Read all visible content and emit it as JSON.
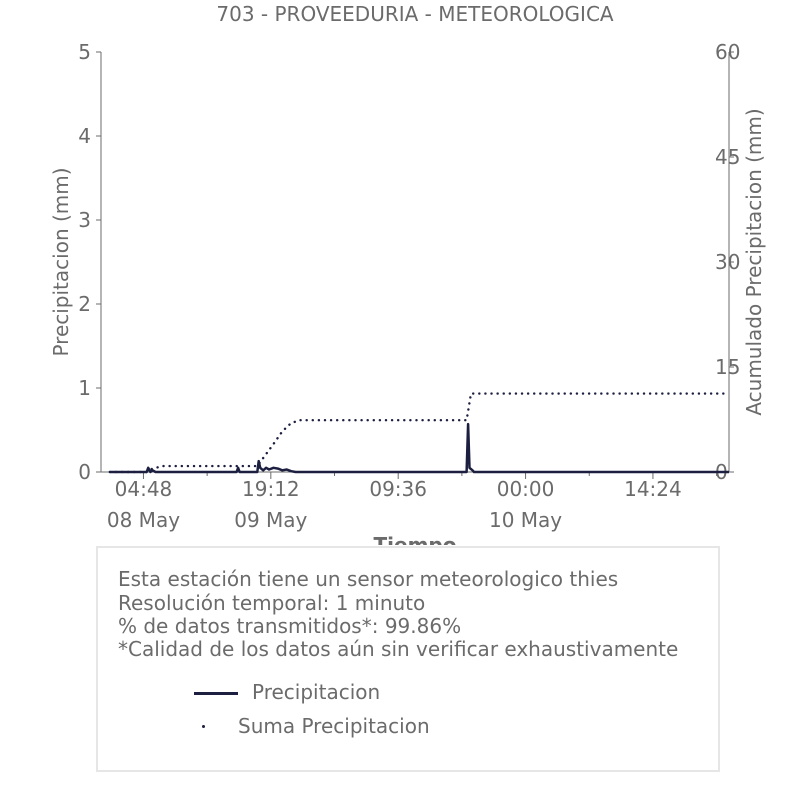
{
  "chart_data": {
    "type": "line",
    "title": "703 - PROVEEDURIA - METEOROLOGICA",
    "xlabel": "Tiempo",
    "ylabel": "Precipitacion (mm)",
    "y2label": "Acumulado Precipitacion (mm)",
    "ylim": [
      0,
      5
    ],
    "y2lim": [
      0,
      60
    ],
    "yticks": [
      "0",
      "1",
      "2",
      "3",
      "4",
      "5"
    ],
    "y2ticks": [
      "0",
      "15",
      "30",
      "45",
      "60"
    ],
    "xlim": [
      "2025-05-08 00:00",
      "2025-05-10 23:00"
    ],
    "xticks": [
      {
        "at": "2025-05-08 04:48",
        "label": "04:48",
        "date": "08 May"
      },
      {
        "at": "2025-05-08 19:12",
        "label": "19:12",
        "date": "09 May"
      },
      {
        "at": "2025-05-09 09:36",
        "label": "09:36",
        "date": ""
      },
      {
        "at": "2025-05-10 00:00",
        "label": "00:00",
        "date": "10 May"
      },
      {
        "at": "2025-05-10 14:24",
        "label": "14:24",
        "date": ""
      }
    ],
    "grid": false,
    "legend_position": "bottom",
    "series": [
      {
        "name": "Precipitacion",
        "axis": "left",
        "style": "line",
        "color": "#1c1f40",
        "points": [
          [
            "2025-05-08 01:00",
            0
          ],
          [
            "2025-05-08 05:10",
            0
          ],
          [
            "2025-05-08 05:20",
            0.05
          ],
          [
            "2025-05-08 05:35",
            0
          ],
          [
            "2025-05-08 05:50",
            0.02
          ],
          [
            "2025-05-08 06:10",
            0
          ],
          [
            "2025-05-08 15:20",
            0
          ],
          [
            "2025-05-08 15:30",
            0.05
          ],
          [
            "2025-05-08 15:40",
            0
          ],
          [
            "2025-05-08 17:40",
            0
          ],
          [
            "2025-05-08 17:50",
            0.13
          ],
          [
            "2025-05-08 18:00",
            0.05
          ],
          [
            "2025-05-08 18:20",
            0.02
          ],
          [
            "2025-05-08 18:40",
            0.05
          ],
          [
            "2025-05-08 19:00",
            0.03
          ],
          [
            "2025-05-08 19:30",
            0.05
          ],
          [
            "2025-05-08 20:00",
            0.04
          ],
          [
            "2025-05-08 20:30",
            0.02
          ],
          [
            "2025-05-08 21:00",
            0.03
          ],
          [
            "2025-05-08 21:30",
            0.01
          ],
          [
            "2025-05-08 22:00",
            0
          ],
          [
            "2025-05-09 17:20",
            0
          ],
          [
            "2025-05-09 17:30",
            0.57
          ],
          [
            "2025-05-09 17:40",
            0.05
          ],
          [
            "2025-05-09 18:00",
            0.02
          ],
          [
            "2025-05-09 18:10",
            0
          ],
          [
            "2025-05-10 23:00",
            0
          ]
        ]
      },
      {
        "name": "Suma Precipitacion",
        "axis": "right",
        "style": "dotted",
        "color": "#1c1f40",
        "points": [
          [
            "2025-05-08 01:00",
            0
          ],
          [
            "2025-05-08 05:10",
            0
          ],
          [
            "2025-05-08 05:40",
            0.4
          ],
          [
            "2025-05-08 06:30",
            0.7
          ],
          [
            "2025-05-08 07:00",
            0.85
          ],
          [
            "2025-05-08 17:40",
            0.85
          ],
          [
            "2025-05-08 18:20",
            2.0
          ],
          [
            "2025-05-08 19:30",
            4.0
          ],
          [
            "2025-05-08 20:30",
            5.8
          ],
          [
            "2025-05-08 21:30",
            7.0
          ],
          [
            "2025-05-08 22:30",
            7.4
          ],
          [
            "2025-05-09 17:20",
            7.4
          ],
          [
            "2025-05-09 17:50",
            11.2
          ],
          [
            "2025-05-10 23:00",
            11.2
          ]
        ]
      }
    ]
  },
  "info": {
    "line1": "Esta estación tiene un sensor meteorologico thies",
    "line2": "Resolución temporal: 1 minuto",
    "line3": "% de datos transmitidos*: 99.86%",
    "line4": "*Calidad de los datos aún sin verificar exhaustivamente"
  }
}
